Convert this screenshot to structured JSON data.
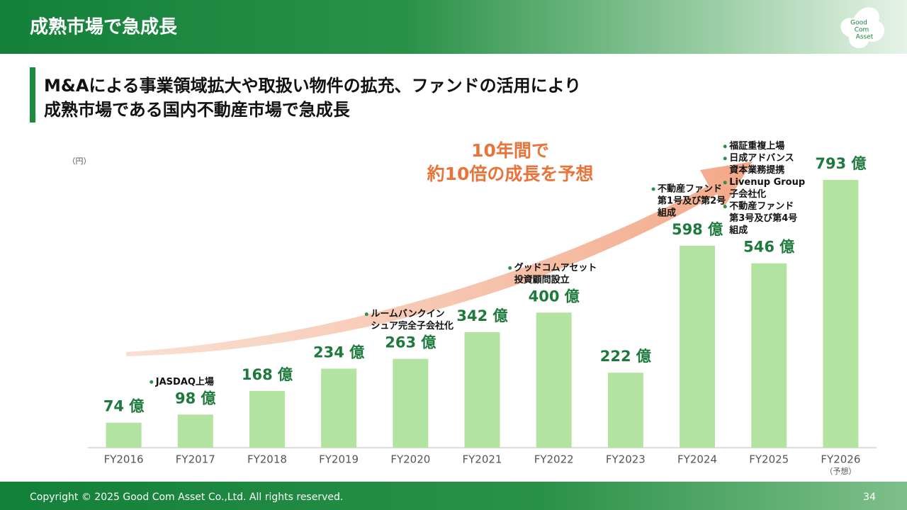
{
  "header": {
    "title": "成熟市場で急成長",
    "logo": [
      "Good",
      "Com",
      "Asset"
    ]
  },
  "subtitle": [
    "M&Aによる事業領域拡大や取扱い物件の拡充、ファンドの活用により",
    "成熟市場である国内不動産市場で急成長"
  ],
  "chart_data": {
    "type": "bar",
    "unit_label": "（円）",
    "callout": [
      "10年間で",
      "約10倍の成長を予想"
    ],
    "categories": [
      "FY2016",
      "FY2017",
      "FY2018",
      "FY2019",
      "FY2020",
      "FY2021",
      "FY2022",
      "FY2023",
      "FY2024",
      "FY2025",
      "FY2026"
    ],
    "category_notes": [
      null,
      null,
      null,
      null,
      null,
      null,
      null,
      null,
      null,
      null,
      "（予想）"
    ],
    "values": [
      74,
      98,
      168,
      234,
      263,
      342,
      400,
      222,
      598,
      546,
      793
    ],
    "value_labels": [
      "74 億",
      "98 億",
      "168 億",
      "234 億",
      "263 億",
      "342 億",
      "400 億",
      "222 億",
      "598 億",
      "546 億",
      "793 億"
    ],
    "color": "#b3e3a0",
    "ylim": [
      0,
      900
    ],
    "milestones": [
      null,
      [
        [
          "JASDAQ上場"
        ]
      ],
      null,
      null,
      [
        [
          "ルームバンクイン",
          "シュア完全子会社化"
        ]
      ],
      null,
      [
        [
          "グッドコムアセット",
          "投資顧問設立"
        ]
      ],
      null,
      [
        [
          "不動産ファンド",
          "第1号及び第2号",
          "組成"
        ]
      ],
      [
        [
          "福証重複上場"
        ],
        [
          "日成アドバンス",
          "資本業務提携"
        ],
        [
          "Livenup Group",
          "子会社化"
        ],
        [
          "不動産ファンド",
          "第3号及び第4号",
          "組成"
        ]
      ],
      null
    ]
  },
  "footer": {
    "copyright": "Copyright © 2025 Good Com Asset Co.,Ltd. All rights reserved.",
    "page": "34"
  }
}
